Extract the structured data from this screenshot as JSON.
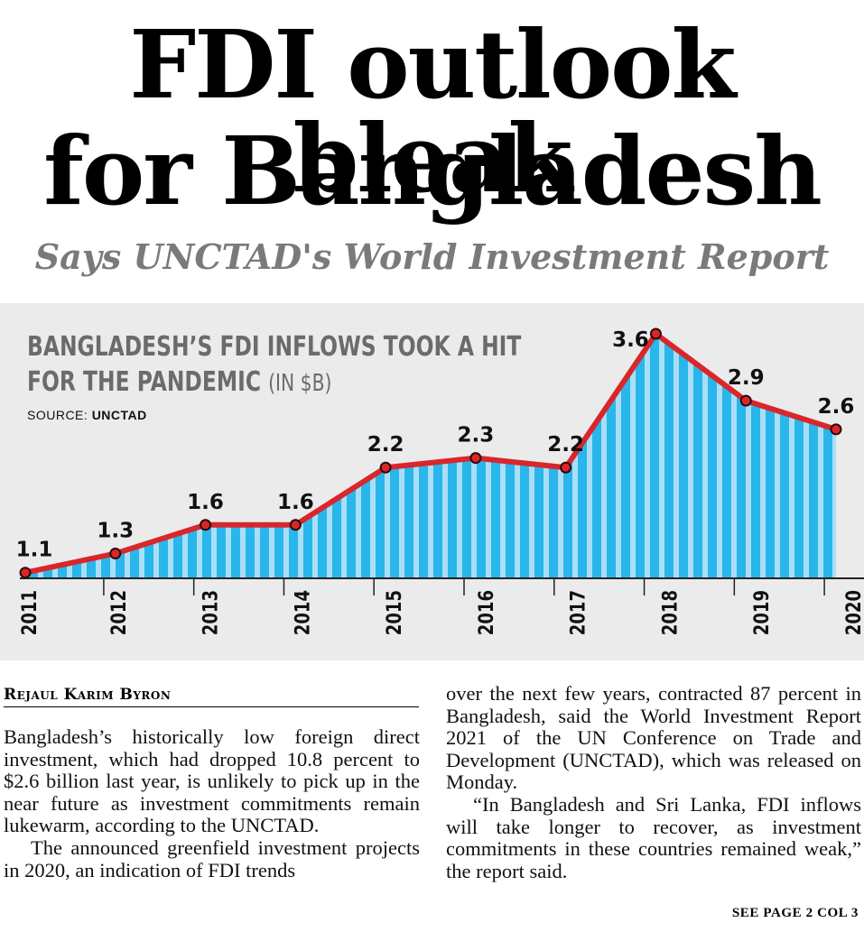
{
  "headline": {
    "line1": "FDI outlook bleak",
    "line2": "for Bangladesh"
  },
  "subheadline": "Says UNCTAD's World Investment Report",
  "chart": {
    "title_line1": "BANGLADESH’S FDI INFLOWS TOOK A HIT",
    "title_line2": "FOR THE PANDEMIC",
    "unit": "(IN $B)",
    "source_label": "SOURCE:",
    "source_name": "UNCTAD"
  },
  "chart_data": {
    "type": "area",
    "x": [
      "2011",
      "2012",
      "2013",
      "2014",
      "2015",
      "2016",
      "2017",
      "2018",
      "2019",
      "2020"
    ],
    "values": [
      1.1,
      1.3,
      1.6,
      1.6,
      2.2,
      2.3,
      2.2,
      3.6,
      2.9,
      2.6
    ],
    "data_labels": [
      "1.1",
      "1.3",
      "1.6",
      "1.6",
      "2.2",
      "2.3",
      "2.2",
      "3.6",
      "2.9",
      "2.6"
    ],
    "ylim": [
      1.05,
      3.6
    ],
    "grid": false,
    "colors": {
      "line": "#d9262b",
      "fill": "#29b6ea",
      "stripe": "#a9def6",
      "marker": "#d9262b"
    }
  },
  "article": {
    "byline": "Rejaul Karim Byron",
    "col1": [
      "Bangladesh’s historically low foreign direct investment, which had dropped 10.8 percent to $2.6 billion last year, is unlikely to pick up in the near future as investment commitments remain lukewarm, according to the UNCTAD.",
      "The announced greenfield investment projects in 2020, an indication of FDI trends"
    ],
    "col2": [
      "over the next few years, contracted 87 percent in Bangladesh, said the World Investment Report 2021 of the UN Conference on Trade and Development (UNCTAD), which was released on Monday.",
      "“In Bangladesh and Sri Lanka, FDI inflows will take longer to recover, as investment commitments in these countries remained weak,” the report said."
    ],
    "continuation": "SEE PAGE 2 COL 3"
  }
}
